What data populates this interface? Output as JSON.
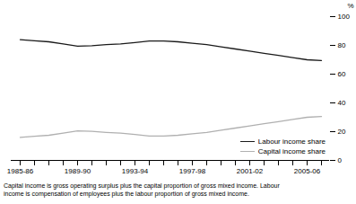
{
  "chart_data": {
    "type": "line",
    "categories": [
      "1985-86",
      null,
      null,
      null,
      "1989-90",
      null,
      null,
      null,
      "1993-94",
      null,
      null,
      null,
      "1997-98",
      null,
      null,
      null,
      "2001-02",
      null,
      null,
      null,
      "2005-06",
      null
    ],
    "series": [
      {
        "name": "Labour income share",
        "color": "#1a1a1a",
        "values": [
          84,
          83.2,
          82.5,
          81,
          79.5,
          79.8,
          80.5,
          81,
          82,
          83,
          83,
          82.5,
          81.5,
          80.5,
          79,
          77.5,
          76,
          74.5,
          73,
          71.5,
          70,
          69.5
        ]
      },
      {
        "name": "Capital income share",
        "color": "#b0b0b0",
        "values": [
          16,
          16.8,
          17.5,
          19,
          20.5,
          20.2,
          19.5,
          19,
          18,
          17,
          17,
          17.5,
          18.5,
          19.5,
          21,
          22.5,
          24,
          25.5,
          27,
          28.5,
          30,
          30.5
        ]
      }
    ],
    "y_label": "%",
    "ylim": [
      0,
      100
    ],
    "yticks": [
      0,
      20,
      40,
      60,
      80,
      100
    ],
    "grid": false,
    "legend": "lower right",
    "annotations": [
      "Capital income is gross operating surplus plus the capital proportion of gross mixed income. Labour",
      "income is compensation of employees plus the labour proportion of gross mixed income."
    ]
  }
}
